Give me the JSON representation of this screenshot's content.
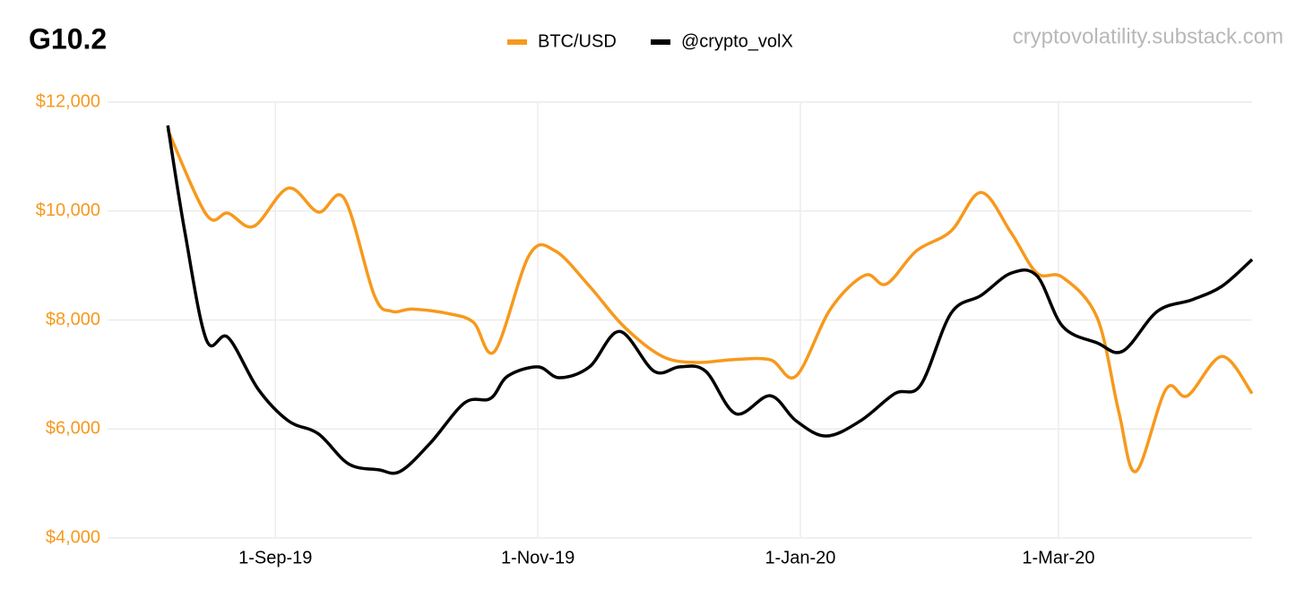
{
  "chart_data": {
    "type": "line",
    "title": "G10.2",
    "source": "cryptovolatility.substack.com",
    "xlim": [
      "2019-07-24",
      "2020-04-15"
    ],
    "xticks": [
      {
        "value": "2019-09-01",
        "label": "1-Sep-19"
      },
      {
        "value": "2019-11-01",
        "label": "1-Nov-19"
      },
      {
        "value": "2020-01-01",
        "label": "1-Jan-20"
      },
      {
        "value": "2020-03-01",
        "label": "1-Mar-20"
      }
    ],
    "ylim": [
      4000,
      12000
    ],
    "yticks": [
      {
        "value": 4000,
        "label": "$4,000"
      },
      {
        "value": 6000,
        "label": "$6,000"
      },
      {
        "value": 8000,
        "label": "$8,000"
      },
      {
        "value": 10000,
        "label": "$10,000"
      },
      {
        "value": 12000,
        "label": "$12,000"
      }
    ],
    "grid": true,
    "series": [
      {
        "name": "BTC/USD",
        "color": "#f7991c",
        "x": [
          "2019-08-07",
          "2019-08-16",
          "2019-08-21",
          "2019-08-27",
          "2019-09-04",
          "2019-09-11",
          "2019-09-17",
          "2019-09-24",
          "2019-09-28",
          "2019-10-03",
          "2019-10-11",
          "2019-10-17",
          "2019-10-22",
          "2019-10-30",
          "2019-11-05",
          "2019-11-13",
          "2019-11-21",
          "2019-11-30",
          "2019-12-08",
          "2019-12-16",
          "2019-12-25",
          "2019-12-31",
          "2020-01-08",
          "2020-01-16",
          "2020-01-21",
          "2020-01-28",
          "2020-02-05",
          "2020-02-12",
          "2020-02-19",
          "2020-02-25",
          "2020-03-02",
          "2020-03-10",
          "2020-03-15",
          "2020-03-19",
          "2020-03-26",
          "2020-03-31",
          "2020-04-08",
          "2020-04-15"
        ],
        "values": [
          11490,
          9930,
          9960,
          9720,
          10420,
          9980,
          10230,
          8450,
          8160,
          8200,
          8120,
          7960,
          7430,
          9190,
          9270,
          8620,
          7880,
          7330,
          7220,
          7270,
          7270,
          6970,
          8200,
          8820,
          8660,
          9270,
          9630,
          10340,
          9600,
          8860,
          8780,
          8040,
          6320,
          5220,
          6730,
          6610,
          7330,
          6650
        ]
      },
      {
        "name": "@crypto_volX",
        "color": "#000000",
        "x": [
          "2019-08-07",
          "2019-08-11",
          "2019-08-16",
          "2019-08-21",
          "2019-08-28",
          "2019-09-04",
          "2019-09-11",
          "2019-09-18",
          "2019-09-25",
          "2019-09-30",
          "2019-10-07",
          "2019-10-15",
          "2019-10-21",
          "2019-10-25",
          "2019-11-01",
          "2019-11-06",
          "2019-11-13",
          "2019-11-20",
          "2019-11-28",
          "2019-12-04",
          "2019-12-10",
          "2019-12-17",
          "2019-12-25",
          "2019-12-31",
          "2020-01-07",
          "2020-01-15",
          "2020-01-23",
          "2020-01-29",
          "2020-02-05",
          "2020-02-12",
          "2020-02-19",
          "2020-02-25",
          "2020-03-02",
          "2020-03-10",
          "2020-03-16",
          "2020-03-24",
          "2020-04-01",
          "2020-04-08",
          "2020-04-15"
        ],
        "values": [
          11570,
          9600,
          7630,
          7680,
          6730,
          6150,
          5910,
          5360,
          5250,
          5220,
          5740,
          6480,
          6560,
          6970,
          7140,
          6940,
          7140,
          7790,
          7060,
          7140,
          7060,
          6280,
          6610,
          6150,
          5870,
          6150,
          6650,
          6810,
          8120,
          8450,
          8860,
          8810,
          7880,
          7580,
          7430,
          8160,
          8370,
          8620,
          9110
        ]
      }
    ]
  }
}
